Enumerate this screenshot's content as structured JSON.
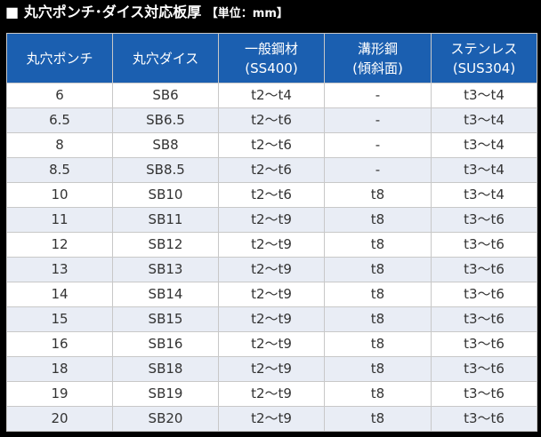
{
  "title": {
    "main": "■ 丸穴ポンチ･ダイス対応板厚",
    "unit": "【単位：mm】"
  },
  "table": {
    "headers": [
      {
        "line1": "丸穴ポンチ",
        "line2": ""
      },
      {
        "line1": "丸穴ダイス",
        "line2": ""
      },
      {
        "line1": "一般鋼材",
        "line2": "(SS400)"
      },
      {
        "line1": "溝形鋼",
        "line2": "(傾斜面)"
      },
      {
        "line1": "ステンレス",
        "line2": "(SUS304)"
      }
    ],
    "rows": [
      [
        "6",
        "SB6",
        "t2～t4",
        "-",
        "t3～t4"
      ],
      [
        "6.5",
        "SB6.5",
        "t2～t6",
        "-",
        "t3～t4"
      ],
      [
        "8",
        "SB8",
        "t2～t6",
        "-",
        "t3～t4"
      ],
      [
        "8.5",
        "SB8.5",
        "t2～t6",
        "-",
        "t3～t4"
      ],
      [
        "10",
        "SB10",
        "t2～t6",
        "t8",
        "t3～t4"
      ],
      [
        "11",
        "SB11",
        "t2～t9",
        "t8",
        "t3～t6"
      ],
      [
        "12",
        "SB12",
        "t2～t9",
        "t8",
        "t3～t6"
      ],
      [
        "13",
        "SB13",
        "t2～t9",
        "t8",
        "t3～t6"
      ],
      [
        "14",
        "SB14",
        "t2～t9",
        "t8",
        "t3～t6"
      ],
      [
        "15",
        "SB15",
        "t2～t9",
        "t8",
        "t3～t6"
      ],
      [
        "16",
        "SB16",
        "t2～t9",
        "t8",
        "t3～t6"
      ],
      [
        "18",
        "SB18",
        "t2～t9",
        "t8",
        "t3～t6"
      ],
      [
        "19",
        "SB19",
        "t2～t9",
        "t8",
        "t3～t6"
      ],
      [
        "20",
        "SB20",
        "t2～t9",
        "t8",
        "t3～t6"
      ]
    ]
  },
  "colors": {
    "header_bg": "#1b5fb0",
    "row_alt_bg": "#e9edf5",
    "page_bg": "#000000"
  }
}
